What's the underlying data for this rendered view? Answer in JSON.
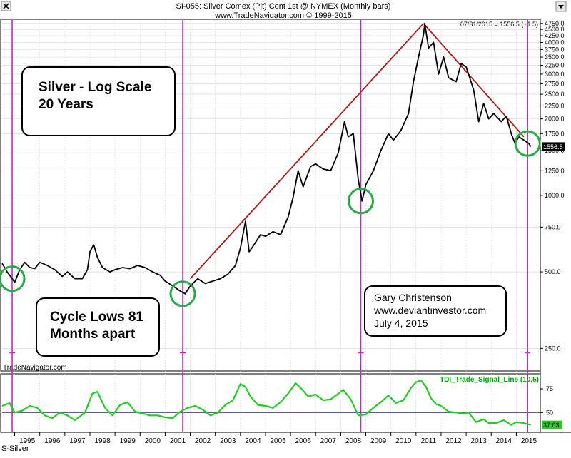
{
  "header": {
    "title": "SI-055:  Silver Comex (Pit) Cont 1st @ NYMEX  (Monthly bars)",
    "subtitle": "www.TradeNavigator.com © 1999-2015",
    "readout": "07/31/2015 = 1556.5 (+1.5)",
    "watermark": "TradeNavigator.com",
    "symbol_label": "S-Silver"
  },
  "colors": {
    "price_line": "#000000",
    "trendline": "#b01818",
    "cycle_line": "#cc22cc",
    "cycle_circle": "#2aa84a",
    "indicator_line": "#22cc22",
    "indicator_ref": "#4a4a8a",
    "indicator_title": "#00aa00"
  },
  "annotations": {
    "box1": [
      "Silver - Log Scale",
      "20 Years"
    ],
    "box2": [
      "Cycle Lows 81",
      "Months apart"
    ],
    "box3": [
      "Gary Christenson",
      "www.deviantinvestor.com",
      "July 4, 2015"
    ]
  },
  "chart_data": [
    {
      "type": "line",
      "title": "SI-055:  Silver Comex (Pit) Cont 1st @ NYMEX  (Monthly bars)",
      "y_scale": "log",
      "ylim": [
        205,
        4900
      ],
      "xlim": [
        1994.5,
        2015.9
      ],
      "y_ticks": [
        250,
        500,
        750,
        1000,
        1250,
        1500,
        1750,
        2000,
        2250,
        2500,
        2750,
        3000,
        3250,
        3500,
        3750,
        4000,
        4250,
        4500,
        4750
      ],
      "y_tick_labels": [
        "250.0",
        "500.0",
        "750.0",
        "1000.0",
        "1250.0",
        "1500.0",
        "1750.0",
        "2000.0",
        "2250.0",
        "2500.0",
        "2750.0",
        "3000.0",
        "3250.0",
        "3500.0",
        "3750.0",
        "4000.0",
        "4250.0",
        "4500.0",
        "4750.0"
      ],
      "x_tick_labels": [
        "1995",
        "1996",
        "1997",
        "1998",
        "1999",
        "2000",
        "2001",
        "2002",
        "2003",
        "2004",
        "2005",
        "2006",
        "2007",
        "2008",
        "2009",
        "2010",
        "2011",
        "2012",
        "2013",
        "2014",
        "2015"
      ],
      "last_value_label": "1556.5",
      "series": [
        {
          "values": [
            [
              1994.5,
              540
            ],
            [
              1994.7,
              500
            ],
            [
              1994.9,
              470
            ],
            [
              1995.0,
              455
            ],
            [
              1995.2,
              510
            ],
            [
              1995.4,
              545
            ],
            [
              1995.6,
              520
            ],
            [
              1995.8,
              515
            ],
            [
              1996.0,
              545
            ],
            [
              1996.3,
              530
            ],
            [
              1996.6,
              510
            ],
            [
              1996.9,
              480
            ],
            [
              1997.1,
              500
            ],
            [
              1997.4,
              470
            ],
            [
              1997.7,
              470
            ],
            [
              1997.9,
              510
            ],
            [
              1998.0,
              600
            ],
            [
              1998.15,
              640
            ],
            [
              1998.3,
              570
            ],
            [
              1998.5,
              520
            ],
            [
              1998.8,
              500
            ],
            [
              1999.0,
              510
            ],
            [
              1999.3,
              520
            ],
            [
              1999.6,
              515
            ],
            [
              1999.9,
              530
            ],
            [
              2000.2,
              520
            ],
            [
              2000.5,
              500
            ],
            [
              2000.8,
              485
            ],
            [
              2001.0,
              460
            ],
            [
              2001.3,
              440
            ],
            [
              2001.6,
              420
            ],
            [
              2001.8,
              410
            ],
            [
              2002.0,
              440
            ],
            [
              2002.3,
              470
            ],
            [
              2002.6,
              450
            ],
            [
              2002.9,
              460
            ],
            [
              2003.2,
              470
            ],
            [
              2003.5,
              490
            ],
            [
              2003.8,
              530
            ],
            [
              2004.0,
              620
            ],
            [
              2004.2,
              790
            ],
            [
              2004.35,
              600
            ],
            [
              2004.5,
              630
            ],
            [
              2004.8,
              700
            ],
            [
              2005.0,
              690
            ],
            [
              2005.3,
              720
            ],
            [
              2005.6,
              700
            ],
            [
              2005.9,
              820
            ],
            [
              2006.1,
              980
            ],
            [
              2006.3,
              1250
            ],
            [
              2006.5,
              1080
            ],
            [
              2006.8,
              1300
            ],
            [
              2007.0,
              1330
            ],
            [
              2007.3,
              1270
            ],
            [
              2007.6,
              1250
            ],
            [
              2007.9,
              1470
            ],
            [
              2008.15,
              1950
            ],
            [
              2008.3,
              1700
            ],
            [
              2008.5,
              1750
            ],
            [
              2008.7,
              1150
            ],
            [
              2008.85,
              950
            ],
            [
              2009.0,
              1100
            ],
            [
              2009.3,
              1250
            ],
            [
              2009.6,
              1500
            ],
            [
              2009.9,
              1750
            ],
            [
              2010.1,
              1650
            ],
            [
              2010.4,
              1800
            ],
            [
              2010.7,
              2100
            ],
            [
              2010.9,
              2800
            ],
            [
              2011.1,
              3500
            ],
            [
              2011.3,
              4300
            ],
            [
              2011.35,
              4750
            ],
            [
              2011.5,
              3800
            ],
            [
              2011.7,
              4000
            ],
            [
              2011.9,
              3000
            ],
            [
              2012.1,
              3500
            ],
            [
              2012.3,
              2900
            ],
            [
              2012.6,
              2800
            ],
            [
              2012.8,
              3300
            ],
            [
              2013.0,
              3200
            ],
            [
              2013.3,
              2600
            ],
            [
              2013.5,
              1950
            ],
            [
              2013.7,
              2300
            ],
            [
              2013.9,
              2000
            ],
            [
              2014.1,
              2100
            ],
            [
              2014.4,
              1950
            ],
            [
              2014.6,
              2050
            ],
            [
              2014.8,
              1750
            ],
            [
              2014.95,
              1600
            ],
            [
              2015.1,
              1700
            ],
            [
              2015.3,
              1650
            ],
            [
              2015.5,
              1600
            ],
            [
              2015.58,
              1556.5
            ]
          ]
        },
        {
          "values": [
            [
              2002.0,
              470
            ],
            [
              2011.3,
              4750
            ],
            [
              2015.3,
              1700
            ]
          ]
        }
      ],
      "cycle_low_years": [
        1994.9,
        2001.7,
        2008.8,
        2015.45
      ]
    },
    {
      "type": "line",
      "title": "TDI_Trade_Signal_Line (10,5)",
      "ylim": [
        30,
        90
      ],
      "y_tick_labels": [
        "75",
        "50"
      ],
      "y_ticks": [
        75,
        50
      ],
      "reference_level": 50,
      "last_value_label": "37.03",
      "series": [
        {
          "values": [
            [
              1994.5,
              57
            ],
            [
              1994.8,
              60
            ],
            [
              1995.0,
              50
            ],
            [
              1995.3,
              52
            ],
            [
              1995.6,
              57
            ],
            [
              1995.9,
              55
            ],
            [
              1996.2,
              47
            ],
            [
              1996.5,
              44
            ],
            [
              1996.8,
              50
            ],
            [
              1997.1,
              47
            ],
            [
              1997.4,
              42
            ],
            [
              1997.8,
              50
            ],
            [
              1998.1,
              70
            ],
            [
              1998.3,
              72
            ],
            [
              1998.6,
              55
            ],
            [
              1998.9,
              47
            ],
            [
              1999.2,
              58
            ],
            [
              1999.5,
              61
            ],
            [
              1999.8,
              51
            ],
            [
              2000.1,
              49
            ],
            [
              2000.4,
              47
            ],
            [
              2000.7,
              47
            ],
            [
              2001.0,
              45
            ],
            [
              2001.3,
              44
            ],
            [
              2001.6,
              51
            ],
            [
              2001.9,
              55
            ],
            [
              2002.2,
              57
            ],
            [
              2002.5,
              53
            ],
            [
              2002.8,
              47
            ],
            [
              2003.1,
              50
            ],
            [
              2003.4,
              58
            ],
            [
              2003.7,
              63
            ],
            [
              2004.0,
              80
            ],
            [
              2004.2,
              77
            ],
            [
              2004.4,
              67
            ],
            [
              2004.7,
              58
            ],
            [
              2005.0,
              57
            ],
            [
              2005.3,
              55
            ],
            [
              2005.6,
              61
            ],
            [
              2005.9,
              70
            ],
            [
              2006.2,
              81
            ],
            [
              2006.4,
              76
            ],
            [
              2006.7,
              67
            ],
            [
              2007.0,
              69
            ],
            [
              2007.3,
              63
            ],
            [
              2007.6,
              64
            ],
            [
              2007.9,
              70
            ],
            [
              2008.1,
              74
            ],
            [
              2008.4,
              64
            ],
            [
              2008.7,
              47
            ],
            [
              2009.0,
              48
            ],
            [
              2009.3,
              55
            ],
            [
              2009.6,
              61
            ],
            [
              2009.9,
              68
            ],
            [
              2010.2,
              60
            ],
            [
              2010.5,
              63
            ],
            [
              2010.8,
              76
            ],
            [
              2011.0,
              82
            ],
            [
              2011.2,
              84
            ],
            [
              2011.4,
              77
            ],
            [
              2011.6,
              65
            ],
            [
              2011.8,
              59
            ],
            [
              2012.0,
              57
            ],
            [
              2012.3,
              51
            ],
            [
              2012.6,
              50
            ],
            [
              2012.9,
              49
            ],
            [
              2013.1,
              50
            ],
            [
              2013.4,
              40
            ],
            [
              2013.7,
              43
            ],
            [
              2013.9,
              39
            ],
            [
              2014.2,
              39
            ],
            [
              2014.5,
              42
            ],
            [
              2014.8,
              37
            ],
            [
              2015.0,
              40
            ],
            [
              2015.3,
              39
            ],
            [
              2015.5,
              37.5
            ],
            [
              2015.58,
              37.03
            ]
          ]
        }
      ]
    }
  ]
}
